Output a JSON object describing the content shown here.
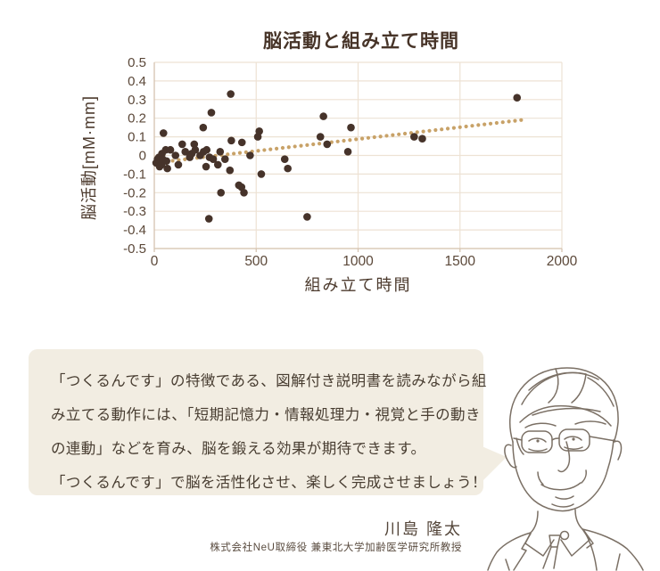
{
  "chart": {
    "title": "脳活動と組み立て時間",
    "x_axis_label": "組み立て時間",
    "y_axis_label": "脳活動[mM·mm]"
  },
  "chart_data": {
    "type": "scatter",
    "title": "脳活動と組み立て時間",
    "xlabel": "組み立て時間",
    "ylabel": "脳活動[mM·mm]",
    "xlim": [
      0,
      2000
    ],
    "ylim": [
      -0.5,
      0.5
    ],
    "grid": true,
    "x_ticks": [
      "0",
      "500",
      "1000",
      "1500",
      "2000"
    ],
    "y_ticks": [
      "0.5",
      "0.4",
      "0.3",
      "0.2",
      "0.1",
      "0",
      "-0.1",
      "-0.2",
      "-0.3",
      "-0.4",
      "-0.5"
    ],
    "points": [
      [
        9,
        -0.04
      ],
      [
        16,
        -0.02
      ],
      [
        23,
        -0.01
      ],
      [
        26,
        -0.06
      ],
      [
        35,
        -0.05
      ],
      [
        38,
        0.01
      ],
      [
        41,
        -0.02
      ],
      [
        45,
        0.12
      ],
      [
        56,
        0.03
      ],
      [
        60,
        -0.03
      ],
      [
        64,
        -0.07
      ],
      [
        79,
        0.03
      ],
      [
        104,
        0.0
      ],
      [
        118,
        -0.05
      ],
      [
        137,
        0.06
      ],
      [
        152,
        0.02
      ],
      [
        174,
        -0.01
      ],
      [
        184,
        0.01
      ],
      [
        196,
        0.06
      ],
      [
        201,
        0.03
      ],
      [
        225,
        0.0
      ],
      [
        240,
        0.15
      ],
      [
        242,
        0.02
      ],
      [
        254,
        -0.06
      ],
      [
        257,
        0.03
      ],
      [
        268,
        -0.34
      ],
      [
        271,
        -0.01
      ],
      [
        280,
        0.23
      ],
      [
        289,
        -0.02
      ],
      [
        312,
        -0.05
      ],
      [
        323,
        0.02
      ],
      [
        327,
        -0.2
      ],
      [
        347,
        -0.02
      ],
      [
        371,
        -0.08
      ],
      [
        375,
        0.33
      ],
      [
        378,
        0.08
      ],
      [
        415,
        -0.16
      ],
      [
        428,
        -0.17
      ],
      [
        430,
        0.07
      ],
      [
        440,
        -0.2
      ],
      [
        470,
        0.0
      ],
      [
        508,
        0.1
      ],
      [
        515,
        0.13
      ],
      [
        525,
        -0.1
      ],
      [
        640,
        -0.02
      ],
      [
        655,
        -0.07
      ],
      [
        750,
        -0.33
      ],
      [
        815,
        0.1
      ],
      [
        830,
        0.21
      ],
      [
        848,
        0.06
      ],
      [
        950,
        0.02
      ],
      [
        965,
        0.15
      ],
      [
        1275,
        0.1
      ],
      [
        1315,
        0.09
      ],
      [
        1780,
        0.31
      ]
    ],
    "trendline": {
      "style": "dotted",
      "from": [
        0,
        -0.04
      ],
      "to": [
        1800,
        0.19
      ]
    }
  },
  "colors": {
    "point": "#46332a",
    "trend": "#c8a268",
    "grid": "#ede2d4",
    "axis": "#d5c4b1",
    "tick_text": "#5b4839",
    "title_text": "#473428",
    "box_bg": "#f2ede2",
    "box_text": "#483d31",
    "portrait_stroke": "#7b7065"
  },
  "text_box": {
    "lines": [
      "「つくるんです」の特徴である、図解付き説明書を読みながら組",
      "み立てる動作には、「短期記憶力・情報処理力・視覚と手の動き",
      "の連動」などを育み、脳を鍛える効果が期待できます。",
      "「つくるんです」で脳を活性化させ、楽しく完成させましょう！"
    ]
  },
  "author": {
    "name": "川島 隆太",
    "title": "株式会社NeU取締役 兼東北大学加齢医学研究所教授"
  }
}
